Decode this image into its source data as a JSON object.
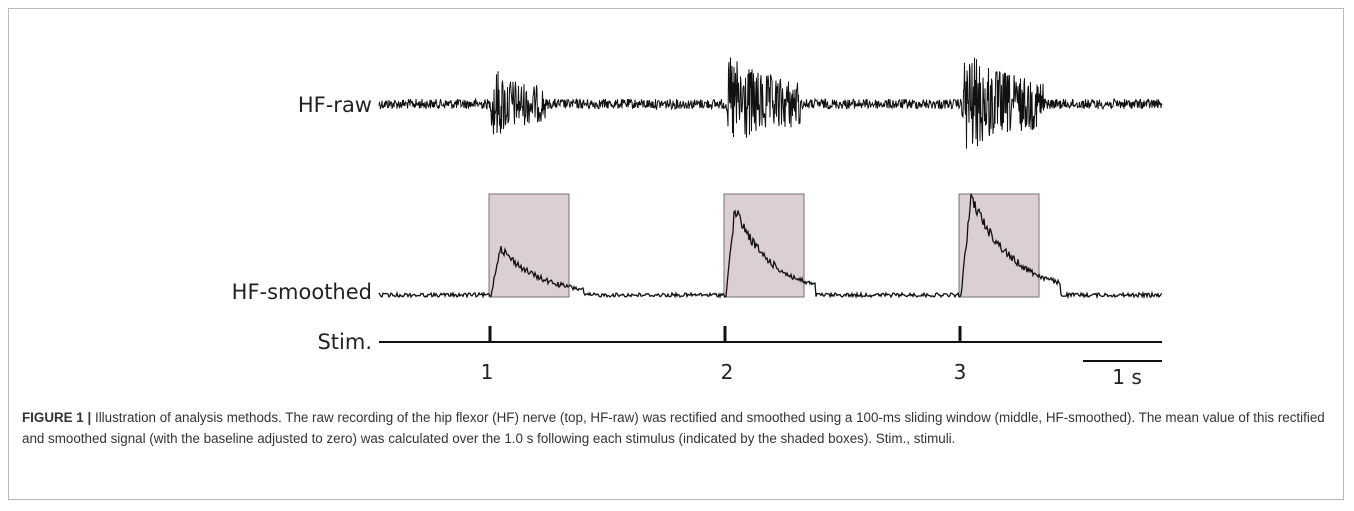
{
  "figure": {
    "traces": {
      "raw_label": "HF-raw",
      "smoothed_label": "HF-smoothed",
      "stim_label": "Stim."
    },
    "stimuli": [
      "1",
      "2",
      "3"
    ],
    "scale_bar_label": "1 s",
    "colors": {
      "trace": "#111111",
      "shaded_box_fill": "#dccfd2",
      "shaded_box_stroke": "#7a6f72"
    }
  },
  "caption": {
    "label": "FIGURE 1 |",
    "text": "Illustration of analysis methods. The raw recording of the hip flexor (HF) nerve (top, HF-raw) was rectified and smoothed using a 100-ms sliding window (middle, HF-smoothed). The mean value of this rectified and smoothed signal (with the baseline adjusted to zero) was calculated over the 1.0 s following each stimulus (indicated by the shaded boxes). Stim., stimuli."
  }
}
